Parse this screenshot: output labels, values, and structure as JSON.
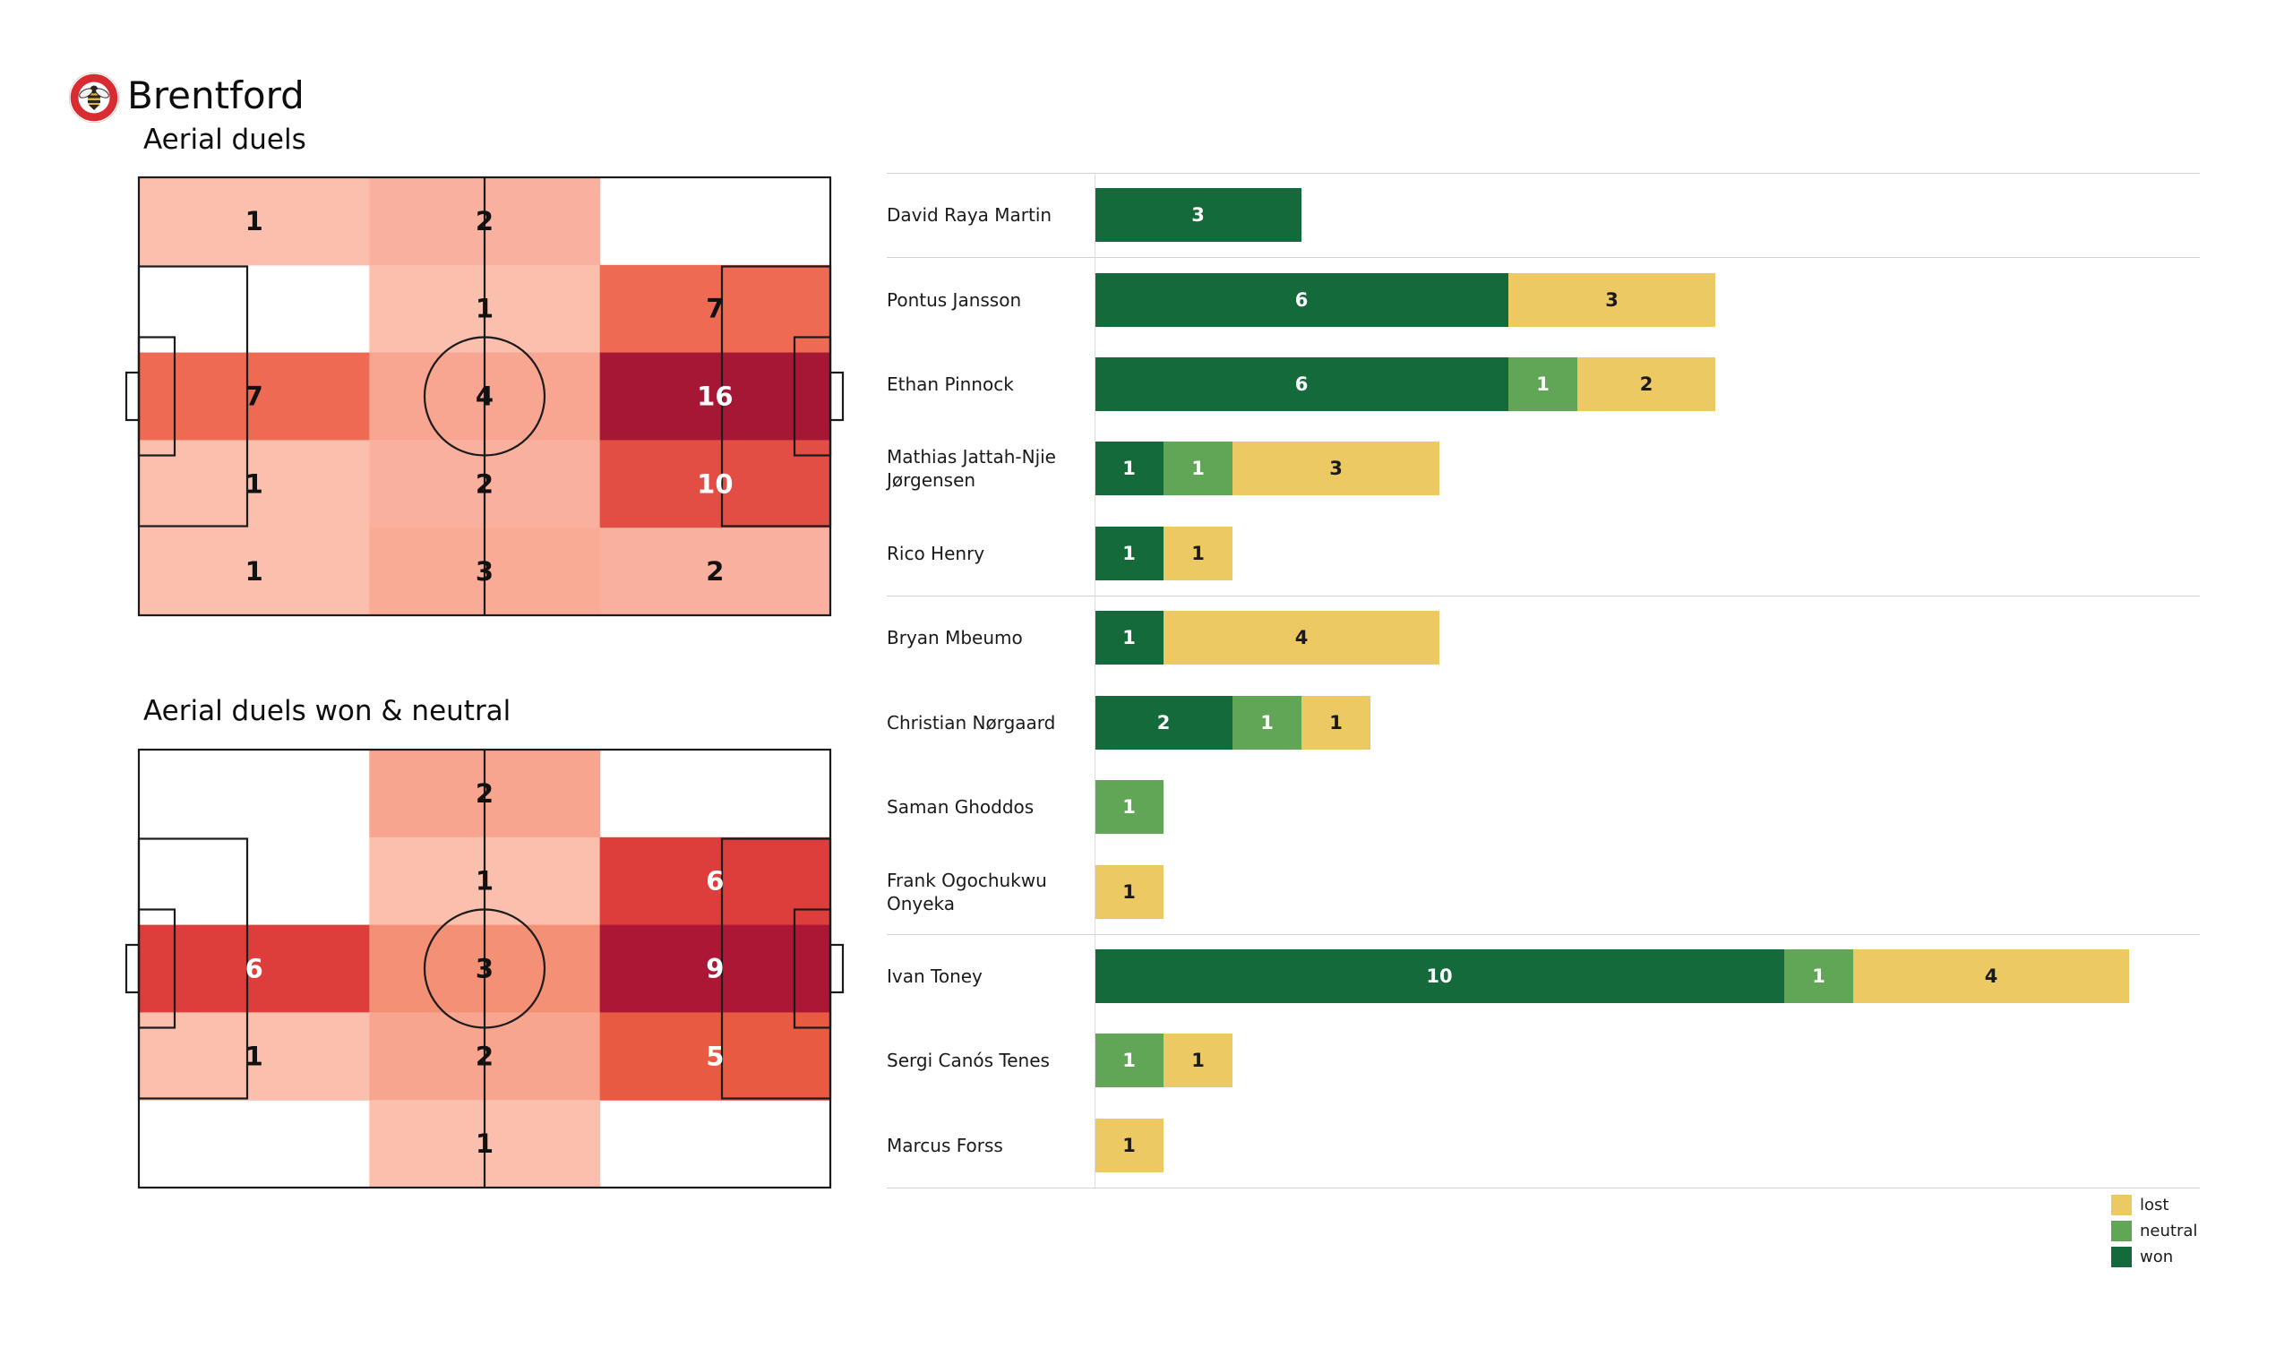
{
  "club": {
    "name": "Brentford",
    "badge_colors": {
      "ring": "#d92b32",
      "inner": "#ffffff",
      "bee_yellow": "#e3b33c",
      "bee_black": "#2a2520"
    }
  },
  "chart_data": [
    {
      "type": "heatmap",
      "title": "Aerial duels",
      "pitch": "football-pitch-horizontal",
      "cols": 3,
      "rows": 5,
      "values": [
        [
          1,
          2,
          0
        ],
        [
          0,
          1,
          7
        ],
        [
          7,
          4,
          16
        ],
        [
          1,
          2,
          10
        ],
        [
          1,
          3,
          2
        ]
      ],
      "value_colors": {
        "0": "#ffffff",
        "1": "#fbbfad",
        "2": "#f9b09e",
        "3": "#f9ab96",
        "4": "#f8a591",
        "7": "#ee6a53",
        "10": "#e24e43",
        "16": "#a51735"
      },
      "white_text_min": 10,
      "line_color": "#1b1b1b",
      "text_color": "#111111"
    },
    {
      "type": "heatmap",
      "title": "Aerial duels won & neutral",
      "pitch": "football-pitch-horizontal",
      "cols": 3,
      "rows": 5,
      "values": [
        [
          0,
          2,
          0
        ],
        [
          0,
          1,
          6
        ],
        [
          6,
          3,
          9
        ],
        [
          1,
          2,
          5
        ],
        [
          0,
          1,
          0
        ]
      ],
      "value_colors": {
        "0": "#ffffff",
        "1": "#fbbfad",
        "2": "#f8a58f",
        "3": "#f39075",
        "5": "#e85a41",
        "6": "#dd3e3c",
        "9": "#ab1735"
      },
      "white_text_min": 5,
      "line_color": "#1b1b1b",
      "text_color": "#111111"
    },
    {
      "type": "bar",
      "stacked": true,
      "orientation": "horizontal",
      "categories": [
        "David Raya Martin",
        "Pontus Jansson",
        "Ethan Pinnock",
        "Mathias Jattah-Njie Jørgensen",
        "Rico Henry",
        "Bryan Mbeumo",
        "Christian Nørgaard",
        "Saman Ghoddos",
        "Frank Ogochukwu Onyeka",
        "Ivan Toney",
        "Sergi Canós Tenes",
        "Marcus Forss"
      ],
      "series": [
        {
          "name": "won",
          "color": "#156a3b",
          "text_color": "#ffffff",
          "values": [
            3,
            6,
            6,
            1,
            1,
            1,
            2,
            0,
            0,
            10,
            0,
            0
          ]
        },
        {
          "name": "neutral",
          "color": "#60a656",
          "text_color": "#ffffff",
          "values": [
            0,
            0,
            1,
            1,
            0,
            0,
            1,
            1,
            0,
            1,
            1,
            0
          ]
        },
        {
          "name": "lost",
          "color": "#ecc962",
          "text_color": "#1a1a1a",
          "values": [
            0,
            3,
            2,
            3,
            1,
            4,
            1,
            0,
            1,
            4,
            1,
            1
          ]
        }
      ],
      "group_separators_after": [
        "David Raya Martin",
        "Rico Henry",
        "Frank Ogochukwu Onyeka",
        "Marcus Forss"
      ],
      "legend": [
        {
          "label": "lost",
          "color": "#ecc962"
        },
        {
          "label": "neutral",
          "color": "#60a656"
        },
        {
          "label": "won",
          "color": "#156a3b"
        }
      ],
      "legend_position": "bottom-right"
    }
  ]
}
